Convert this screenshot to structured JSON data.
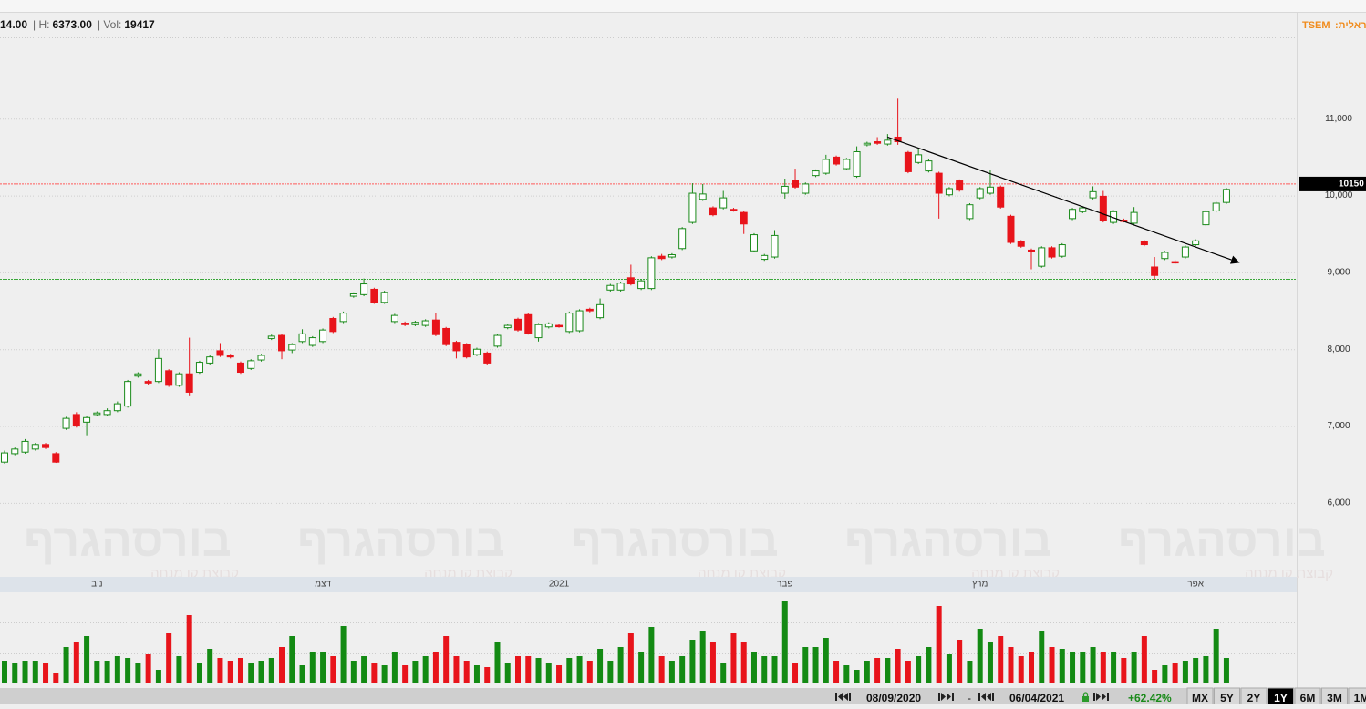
{
  "header": {
    "last": "14.00",
    "high_label": "| H:",
    "high": "6373.00",
    "vol_label": "| Vol:",
    "vol": "19417",
    "symbol": "TSEM",
    "symbol_label": "ראלית:"
  },
  "watermark": {
    "title": "בורסהגרף",
    "subtitle": "קבוצת קו מנחה"
  },
  "toolbar": {
    "from": "08/09/2020",
    "separator": "-",
    "to": "06/04/2021",
    "change": "+62.42%",
    "ranges": [
      "MX",
      "5Y",
      "2Y",
      "1Y",
      "6M",
      "3M",
      "1M"
    ],
    "selected": "1Y"
  },
  "chart_data": {
    "type": "candlestick",
    "up_color": "#1a8a1a",
    "down_color": "#e8141b",
    "ylim": [
      5050,
      12070
    ],
    "yticks": [
      {
        "value": 6000,
        "label": "6,000"
      },
      {
        "value": 7000,
        "label": "7,000"
      },
      {
        "value": 8000,
        "label": "8,000"
      },
      {
        "value": 9000,
        "label": "9,000"
      },
      {
        "value": 10000,
        "label": "10,000"
      },
      {
        "value": 11000,
        "label": "11,000"
      }
    ],
    "grid": true,
    "categories": [
      null,
      null,
      null,
      null,
      null,
      null,
      null,
      null,
      null,
      "נוב",
      null,
      null,
      null,
      null,
      null,
      null,
      null,
      null,
      null,
      null,
      null,
      null,
      null,
      null,
      null,
      null,
      null,
      null,
      null,
      null,
      null,
      "דצמ",
      null,
      null,
      null,
      null,
      null,
      null,
      null,
      null,
      null,
      null,
      null,
      null,
      null,
      null,
      null,
      null,
      null,
      null,
      null,
      null,
      null,
      null,
      "2021",
      null,
      null,
      null,
      null,
      null,
      null,
      null,
      null,
      null,
      null,
      null,
      null,
      null,
      null,
      null,
      null,
      null,
      null,
      null,
      null,
      null,
      "פבר",
      null,
      null,
      null,
      null,
      null,
      null,
      null,
      null,
      null,
      null,
      null,
      null,
      null,
      null,
      null,
      null,
      null,
      null,
      "מרץ",
      null,
      null,
      null,
      null,
      null,
      null,
      null,
      null,
      null,
      null,
      null,
      null,
      null,
      null,
      null,
      null,
      null,
      null,
      null,
      null,
      "אפר",
      null,
      null,
      null
    ],
    "candles": [
      [
        6530,
        6680,
        6510,
        6650
      ],
      [
        6640,
        6720,
        6620,
        6700
      ],
      [
        6660,
        6830,
        6640,
        6800
      ],
      [
        6700,
        6780,
        6680,
        6760
      ],
      [
        6760,
        6780,
        6700,
        6720
      ],
      [
        6640,
        6660,
        6520,
        6530
      ],
      [
        6970,
        7120,
        6950,
        7100
      ],
      [
        7150,
        7180,
        6980,
        7000
      ],
      [
        7050,
        7130,
        6880,
        7110
      ],
      [
        7150,
        7190,
        7130,
        7170
      ],
      [
        7150,
        7230,
        7130,
        7200
      ],
      [
        7200,
        7320,
        7180,
        7290
      ],
      [
        7260,
        7600,
        7240,
        7580
      ],
      [
        7650,
        7700,
        7630,
        7680
      ],
      [
        7580,
        7600,
        7540,
        7560
      ],
      [
        7580,
        8000,
        7560,
        7880
      ],
      [
        7720,
        7740,
        7510,
        7530
      ],
      [
        7530,
        7700,
        7510,
        7680
      ],
      [
        7680,
        8150,
        7400,
        7440
      ],
      [
        7700,
        7850,
        7680,
        7830
      ],
      [
        7820,
        7930,
        7800,
        7900
      ],
      [
        7980,
        8080,
        7900,
        7920
      ],
      [
        7920,
        7940,
        7880,
        7900
      ],
      [
        7820,
        7840,
        7680,
        7700
      ],
      [
        7750,
        7870,
        7730,
        7850
      ],
      [
        7860,
        7940,
        7840,
        7920
      ],
      [
        8140,
        8190,
        8120,
        8170
      ],
      [
        8180,
        8200,
        7870,
        7980
      ],
      [
        7990,
        8080,
        7950,
        8060
      ],
      [
        8100,
        8260,
        8080,
        8200
      ],
      [
        8050,
        8170,
        8030,
        8150
      ],
      [
        8100,
        8270,
        8080,
        8250
      ],
      [
        8400,
        8420,
        8210,
        8230
      ],
      [
        8360,
        8490,
        8340,
        8470
      ],
      [
        8690,
        8740,
        8670,
        8720
      ],
      [
        8710,
        8920,
        8690,
        8850
      ],
      [
        8780,
        8800,
        8590,
        8610
      ],
      [
        8610,
        8760,
        8590,
        8740
      ],
      [
        8360,
        8460,
        8340,
        8440
      ],
      [
        8340,
        8360,
        8300,
        8320
      ],
      [
        8320,
        8370,
        8300,
        8350
      ],
      [
        8310,
        8390,
        8290,
        8370
      ],
      [
        8380,
        8470,
        8170,
        8190
      ],
      [
        8270,
        8290,
        8040,
        8060
      ],
      [
        8090,
        8110,
        7880,
        7980
      ],
      [
        8060,
        8080,
        7880,
        7900
      ],
      [
        7930,
        8020,
        7910,
        8000
      ],
      [
        7950,
        7970,
        7800,
        7820
      ],
      [
        8040,
        8200,
        8020,
        8180
      ],
      [
        8280,
        8330,
        8260,
        8310
      ],
      [
        8390,
        8410,
        8230,
        8250
      ],
      [
        8450,
        8470,
        8190,
        8210
      ],
      [
        8150,
        8340,
        8100,
        8320
      ],
      [
        8290,
        8350,
        8270,
        8330
      ],
      [
        8310,
        8330,
        8280,
        8300
      ],
      [
        8230,
        8490,
        8210,
        8470
      ],
      [
        8240,
        8520,
        8220,
        8500
      ],
      [
        8520,
        8540,
        8480,
        8500
      ],
      [
        8410,
        8660,
        8390,
        8580
      ],
      [
        8770,
        8850,
        8750,
        8830
      ],
      [
        8770,
        8880,
        8750,
        8860
      ],
      [
        8930,
        9100,
        8830,
        8850
      ],
      [
        8790,
        8910,
        8770,
        8890
      ],
      [
        8790,
        9210,
        8770,
        9190
      ],
      [
        9210,
        9240,
        9160,
        9180
      ],
      [
        9200,
        9250,
        9180,
        9230
      ],
      [
        9310,
        9590,
        9290,
        9570
      ],
      [
        9650,
        10160,
        9630,
        10030
      ],
      [
        9950,
        10150,
        9930,
        10020
      ],
      [
        9840,
        9860,
        9730,
        9750
      ],
      [
        9840,
        10060,
        9820,
        9970
      ],
      [
        9820,
        9840,
        9790,
        9810
      ],
      [
        9780,
        9800,
        9500,
        9630
      ],
      [
        9280,
        9510,
        9260,
        9490
      ],
      [
        9170,
        9240,
        9150,
        9220
      ],
      [
        9200,
        9550,
        9180,
        9480
      ],
      [
        10030,
        10220,
        9960,
        10120
      ],
      [
        10200,
        10350,
        10090,
        10110
      ],
      [
        10030,
        10170,
        10010,
        10150
      ],
      [
        10260,
        10340,
        10240,
        10320
      ],
      [
        10290,
        10530,
        10270,
        10470
      ],
      [
        10500,
        10520,
        10390,
        10410
      ],
      [
        10350,
        10490,
        10330,
        10470
      ],
      [
        10250,
        10640,
        10230,
        10570
      ],
      [
        10660,
        10700,
        10640,
        10680
      ],
      [
        10700,
        10760,
        10660,
        10680
      ],
      [
        10670,
        10800,
        10650,
        10720
      ],
      [
        10760,
        11260,
        10660,
        10700
      ],
      [
        10560,
        10580,
        10290,
        10310
      ],
      [
        10430,
        10600,
        10410,
        10530
      ],
      [
        10320,
        10470,
        10300,
        10450
      ],
      [
        10290,
        10310,
        9700,
        10030
      ],
      [
        10010,
        10110,
        9990,
        10090
      ],
      [
        10190,
        10210,
        10050,
        10070
      ],
      [
        9700,
        9900,
        9680,
        9880
      ],
      [
        9970,
        10110,
        9950,
        10090
      ],
      [
        10030,
        10330,
        10010,
        10110
      ],
      [
        10110,
        10130,
        9830,
        9850
      ],
      [
        9730,
        9750,
        9370,
        9390
      ],
      [
        9400,
        9420,
        9320,
        9340
      ],
      [
        9290,
        9310,
        9040,
        9280
      ],
      [
        9080,
        9340,
        9060,
        9320
      ],
      [
        9320,
        9340,
        9180,
        9200
      ],
      [
        9210,
        9380,
        9190,
        9360
      ],
      [
        9700,
        9840,
        9680,
        9820
      ],
      [
        9790,
        9860,
        9770,
        9840
      ],
      [
        9970,
        10120,
        9950,
        10050
      ],
      [
        9990,
        10060,
        9650,
        9670
      ],
      [
        9650,
        9810,
        9630,
        9790
      ],
      [
        9680,
        9700,
        9650,
        9670
      ],
      [
        9640,
        9850,
        9620,
        9780
      ],
      [
        9400,
        9420,
        9340,
        9360
      ],
      [
        9070,
        9200,
        8910,
        8960
      ],
      [
        9180,
        9280,
        9160,
        9260
      ],
      [
        9140,
        9160,
        9110,
        9130
      ],
      [
        9200,
        9350,
        9180,
        9330
      ],
      [
        9360,
        9430,
        9340,
        9410
      ],
      [
        9620,
        9810,
        9600,
        9790
      ],
      [
        9800,
        9920,
        9780,
        9900
      ],
      [
        9910,
        10100,
        9890,
        10080
      ]
    ],
    "volume": {
      "ylim": [
        0,
        100
      ],
      "values": [
        25,
        22,
        25,
        25,
        22,
        12,
        40,
        45,
        52,
        25,
        25,
        30,
        28,
        22,
        32,
        15,
        55,
        30,
        75,
        22,
        38,
        28,
        25,
        28,
        22,
        25,
        28,
        40,
        52,
        20,
        35,
        35,
        30,
        63,
        25,
        30,
        22,
        20,
        35,
        20,
        25,
        30,
        35,
        52,
        30,
        25,
        20,
        18,
        45,
        22,
        30,
        30,
        28,
        22,
        20,
        28,
        30,
        25,
        38,
        25,
        40,
        55,
        35,
        62,
        30,
        25,
        30,
        48,
        58,
        45,
        22,
        55,
        45,
        35,
        30,
        30,
        90,
        22,
        40,
        40,
        50,
        25,
        20,
        15,
        25,
        28,
        28,
        38,
        25,
        30,
        40,
        85,
        32,
        48,
        25,
        60,
        45,
        52,
        40,
        30,
        35,
        58,
        40,
        38,
        35,
        35,
        40,
        35,
        35,
        28,
        35,
        52,
        15,
        20,
        22,
        25,
        28,
        30,
        60,
        28
      ]
    },
    "reference_lines": [
      {
        "value": 10150,
        "color": "#ff5a5a"
      },
      {
        "value": 8910,
        "color": "#3aa83a"
      }
    ],
    "trendline": {
      "x": [
        86,
        120.2
      ],
      "y": [
        10760,
        9130
      ]
    }
  }
}
